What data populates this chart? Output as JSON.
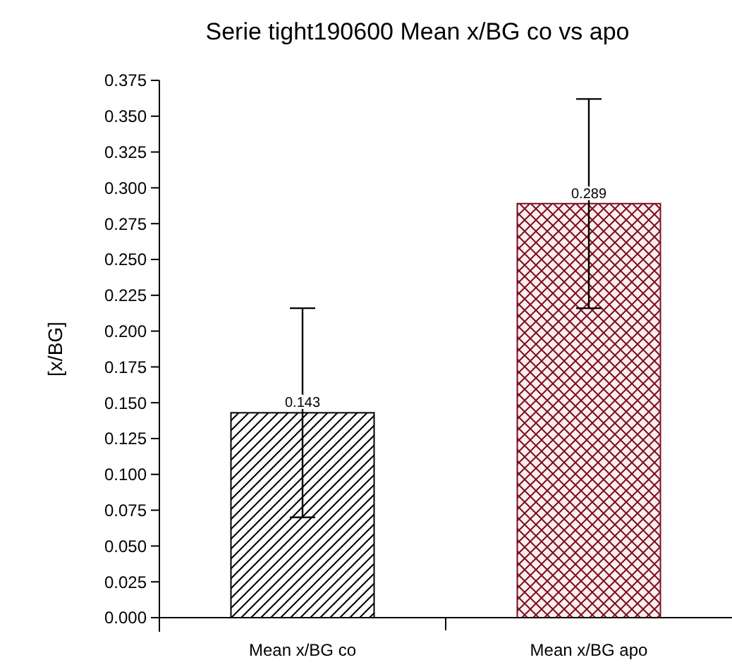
{
  "chart_data": {
    "type": "bar",
    "title": "Serie tight190600 Mean x/BG co vs apo",
    "ylabel": "[x/BG]",
    "categories": [
      "Mean x/BG co",
      "Mean x/BG apo"
    ],
    "values": [
      0.143,
      0.289
    ],
    "errors": [
      0.073,
      0.073
    ],
    "colors": [
      "#000000",
      "#7a1020"
    ],
    "ylim": [
      0,
      0.375
    ],
    "yticks": [
      {
        "value": 0,
        "label": "0.000"
      },
      {
        "value": 0.025,
        "label": "0.025"
      },
      {
        "value": 0.05,
        "label": "0.050"
      },
      {
        "value": 0.075,
        "label": "0.075"
      },
      {
        "value": 0.1,
        "label": "0.100"
      },
      {
        "value": 0.125,
        "label": "0.125"
      },
      {
        "value": 0.15,
        "label": "0.150"
      },
      {
        "value": 0.175,
        "label": "0.175"
      },
      {
        "value": 0.2,
        "label": "0.200"
      },
      {
        "value": 0.225,
        "label": "0.225"
      },
      {
        "value": 0.25,
        "label": "0.250"
      },
      {
        "value": 0.275,
        "label": "0.275"
      },
      {
        "value": 0.3,
        "label": "0.300"
      },
      {
        "value": 0.325,
        "label": "0.325"
      },
      {
        "value": 0.35,
        "label": "0.350"
      },
      {
        "value": 0.375,
        "label": "0.375"
      }
    ],
    "data_labels": true,
    "grid": false
  }
}
